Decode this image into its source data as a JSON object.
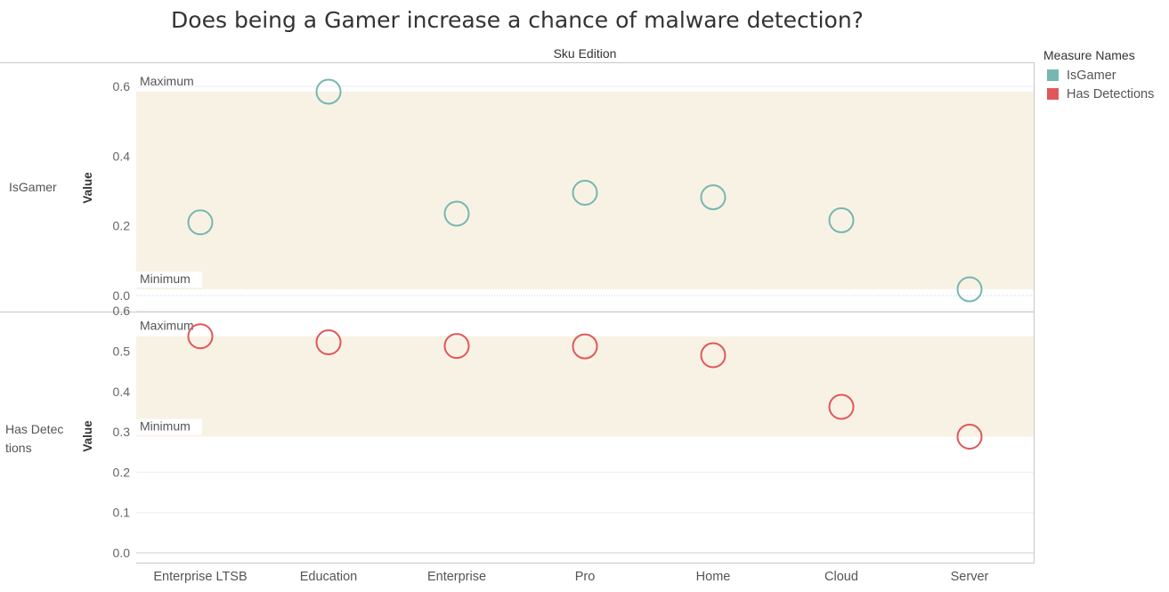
{
  "chart_data": {
    "type": "scatter",
    "title": "Does being a Gamer increase a chance of malware detection?",
    "column_header": "Sku Edition",
    "categories": [
      "Enterprise LTSB",
      "Education",
      "Enterprise",
      "Pro",
      "Home",
      "Cloud",
      "Server"
    ],
    "panels": [
      {
        "row_label": "IsGamer",
        "ylabel": "Value",
        "ylim": [
          0,
          0.65
        ],
        "yticks": [
          "0.0",
          "0.2",
          "0.4",
          "0.6"
        ],
        "reference_band": {
          "min_label": "Minimum",
          "max_label": "Maximum"
        },
        "series": {
          "name": "IsGamer",
          "color": "#76b7b2",
          "values": [
            0.21,
            0.585,
            0.235,
            0.295,
            0.282,
            0.216,
            0.018
          ]
        }
      },
      {
        "row_label": "Has Detections",
        "ylabel": "Value",
        "ylim": [
          0,
          0.6
        ],
        "yticks": [
          "0.0",
          "0.1",
          "0.2",
          "0.3",
          "0.4",
          "0.5",
          "0.6"
        ],
        "reference_band": {
          "min_label": "Minimum",
          "max_label": "Maximum"
        },
        "series": {
          "name": "Has Detections",
          "color": "#e15759",
          "values": [
            0.537,
            0.522,
            0.513,
            0.512,
            0.49,
            0.362,
            0.288
          ]
        }
      }
    ],
    "legend": {
      "title": "Measure Names",
      "position": "right",
      "items": [
        {
          "label": "IsGamer",
          "color": "#76b7b2"
        },
        {
          "label": "Has Detections",
          "color": "#e15759"
        }
      ]
    },
    "grid": true
  }
}
